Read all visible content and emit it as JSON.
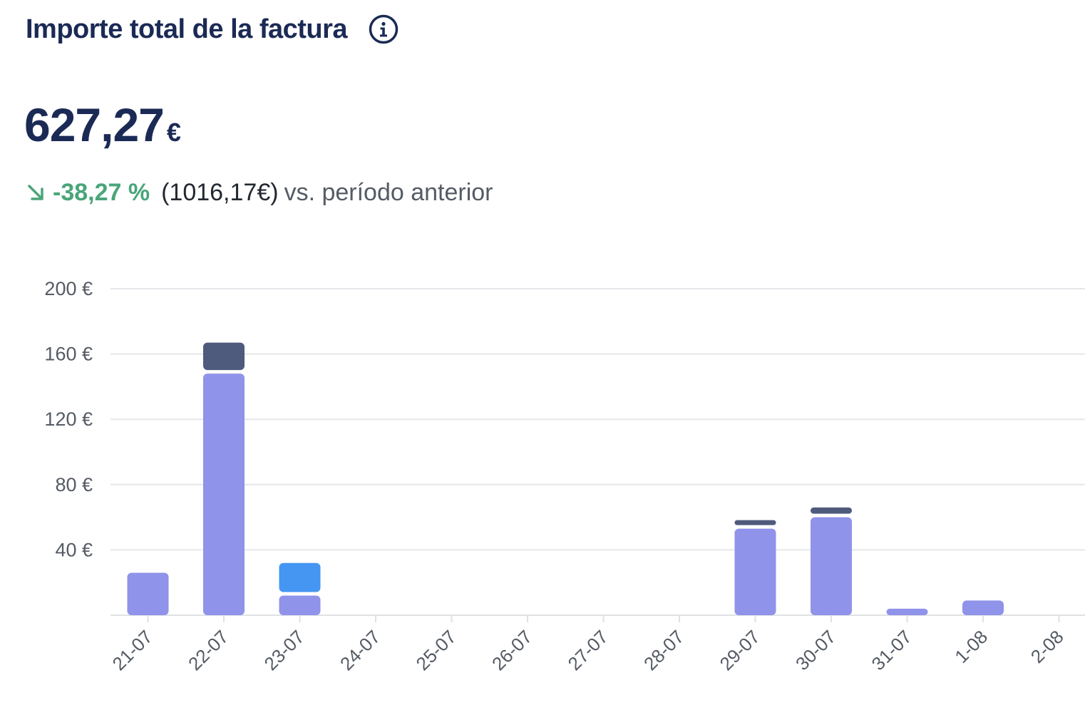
{
  "header": {
    "title": "Importe total de la factura",
    "info_icon": "info-circle-icon"
  },
  "summary": {
    "amount": "627,27",
    "currency": "€",
    "trend_icon": "arrow-down-right-icon",
    "change": "-38,27 %",
    "previous": "(1016,17€)",
    "vs_label": "vs. período anterior"
  },
  "colors": {
    "title": "#1b2a55",
    "positive_change": "#4aa578",
    "series_main": "#8f93ea",
    "series_dark": "#4f5b7c",
    "series_blue": "#4596f2"
  },
  "chart_data": {
    "type": "bar",
    "stacked": true,
    "categories": [
      "21-07",
      "22-07",
      "23-07",
      "24-07",
      "25-07",
      "26-07",
      "27-07",
      "28-07",
      "29-07",
      "30-07",
      "31-07",
      "1-08",
      "2-08"
    ],
    "series": [
      {
        "color": "#8f93ea",
        "values": [
          26,
          148,
          12,
          0,
          0,
          0,
          0,
          0,
          53,
          60,
          4,
          9,
          0
        ]
      },
      {
        "color": "#4596f2",
        "values": [
          0,
          0,
          20,
          0,
          0,
          0,
          0,
          0,
          0,
          0,
          0,
          0,
          0
        ]
      },
      {
        "color": "#4f5b7c",
        "values": [
          0,
          19,
          0,
          0,
          0,
          0,
          0,
          0,
          5,
          6,
          0,
          0,
          0
        ]
      }
    ],
    "y_ticks": [
      "40 €",
      "80 €",
      "120 €",
      "160 €",
      "200 €"
    ],
    "y_tick_values": [
      40,
      80,
      120,
      160,
      200
    ],
    "ylim": [
      0,
      200
    ],
    "grid": true
  }
}
